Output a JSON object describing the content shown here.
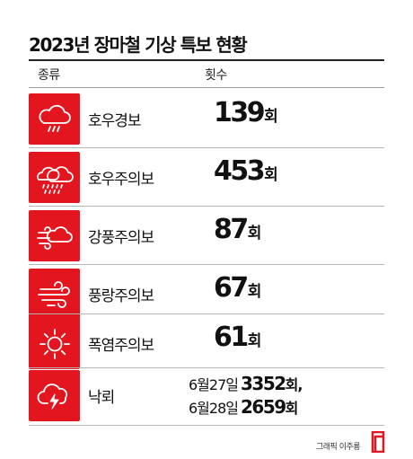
{
  "title": "2023년 장마철 기상 특보 현황",
  "header": {
    "type": "종류",
    "count": "횟수"
  },
  "rows": [
    {
      "label": "호우경보",
      "value": "139",
      "unit": "회",
      "icon": "rain-cloud-icon"
    },
    {
      "label": "호우주의보",
      "value": "453",
      "unit": "회",
      "icon": "heavy-rain-clouds-icon"
    },
    {
      "label": "강풍주의보",
      "value": "87",
      "unit": "회",
      "icon": "wind-cloud-icon"
    },
    {
      "label": "풍랑주의보",
      "value": "67",
      "unit": "회",
      "icon": "wind-waves-icon"
    },
    {
      "label": "폭염주의보",
      "value": "61",
      "unit": "회",
      "icon": "sun-icon"
    }
  ],
  "lightning": {
    "label": "낙뢰",
    "icon": "lightning-cloud-icon",
    "line1": {
      "date": "6월27일",
      "value": "3352",
      "unit": "회,"
    },
    "line2": {
      "date": "6월28일",
      "value": "2659",
      "unit": "회"
    }
  },
  "credit": "그래픽 이주룡",
  "colors": {
    "accent": "#e3161f",
    "text": "#111111"
  }
}
